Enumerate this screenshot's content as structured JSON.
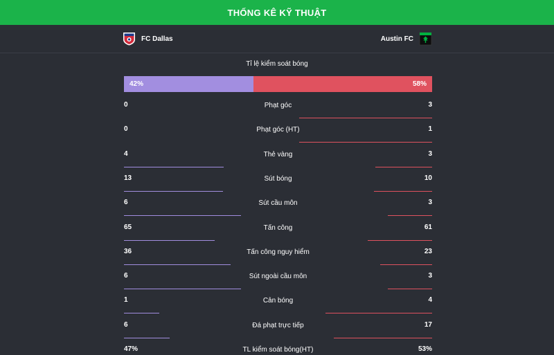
{
  "header": {
    "title": "THỐNG KÊ KỸ THUẬT"
  },
  "teams": {
    "home": {
      "name": "FC Dallas",
      "crest_icon": "fc-dallas-crest-icon",
      "crest_text": "FC DALLAS"
    },
    "away": {
      "name": "Austin FC",
      "crest_icon": "austin-fc-crest-icon",
      "crest_text": "AUSTIN"
    }
  },
  "possession": {
    "label": "Tỉ lệ kiểm soát bóng",
    "home_value": "42%",
    "away_value": "58%",
    "home_fraction": 0.42,
    "away_fraction": 0.58
  },
  "colors": {
    "header": "#1bb34a",
    "background": "#2b2e35",
    "home": "#a28ee0",
    "away": "#e0525f"
  },
  "stats": [
    {
      "label": "Phạt góc",
      "home": "0",
      "away": "3",
      "home_share": 0.0,
      "away_share": 1.0
    },
    {
      "label": "Phạt góc (HT)",
      "home": "0",
      "away": "1",
      "home_share": 0.0,
      "away_share": 1.0
    },
    {
      "label": "Thẻ vàng",
      "home": "4",
      "away": "3",
      "home_share": 0.571,
      "away_share": 0.429
    },
    {
      "label": "Sút bóng",
      "home": "13",
      "away": "10",
      "home_share": 0.565,
      "away_share": 0.435
    },
    {
      "label": "Sút cầu môn",
      "home": "6",
      "away": "3",
      "home_share": 0.667,
      "away_share": 0.333
    },
    {
      "label": "Tấn công",
      "home": "65",
      "away": "61",
      "home_share": 0.516,
      "away_share": 0.484
    },
    {
      "label": "Tấn công nguy hiểm",
      "home": "36",
      "away": "23",
      "home_share": 0.61,
      "away_share": 0.39
    },
    {
      "label": "Sút ngoài cầu môn",
      "home": "6",
      "away": "3",
      "home_share": 0.667,
      "away_share": 0.333
    },
    {
      "label": "Cản bóng",
      "home": "1",
      "away": "4",
      "home_share": 0.2,
      "away_share": 0.8
    },
    {
      "label": "Đá phạt trực tiếp",
      "home": "6",
      "away": "17",
      "home_share": 0.261,
      "away_share": 0.739
    },
    {
      "label": "TL kiểm soát bóng(HT)",
      "home": "47%",
      "away": "53%",
      "home_share": 0.47,
      "away_share": 0.53
    }
  ]
}
